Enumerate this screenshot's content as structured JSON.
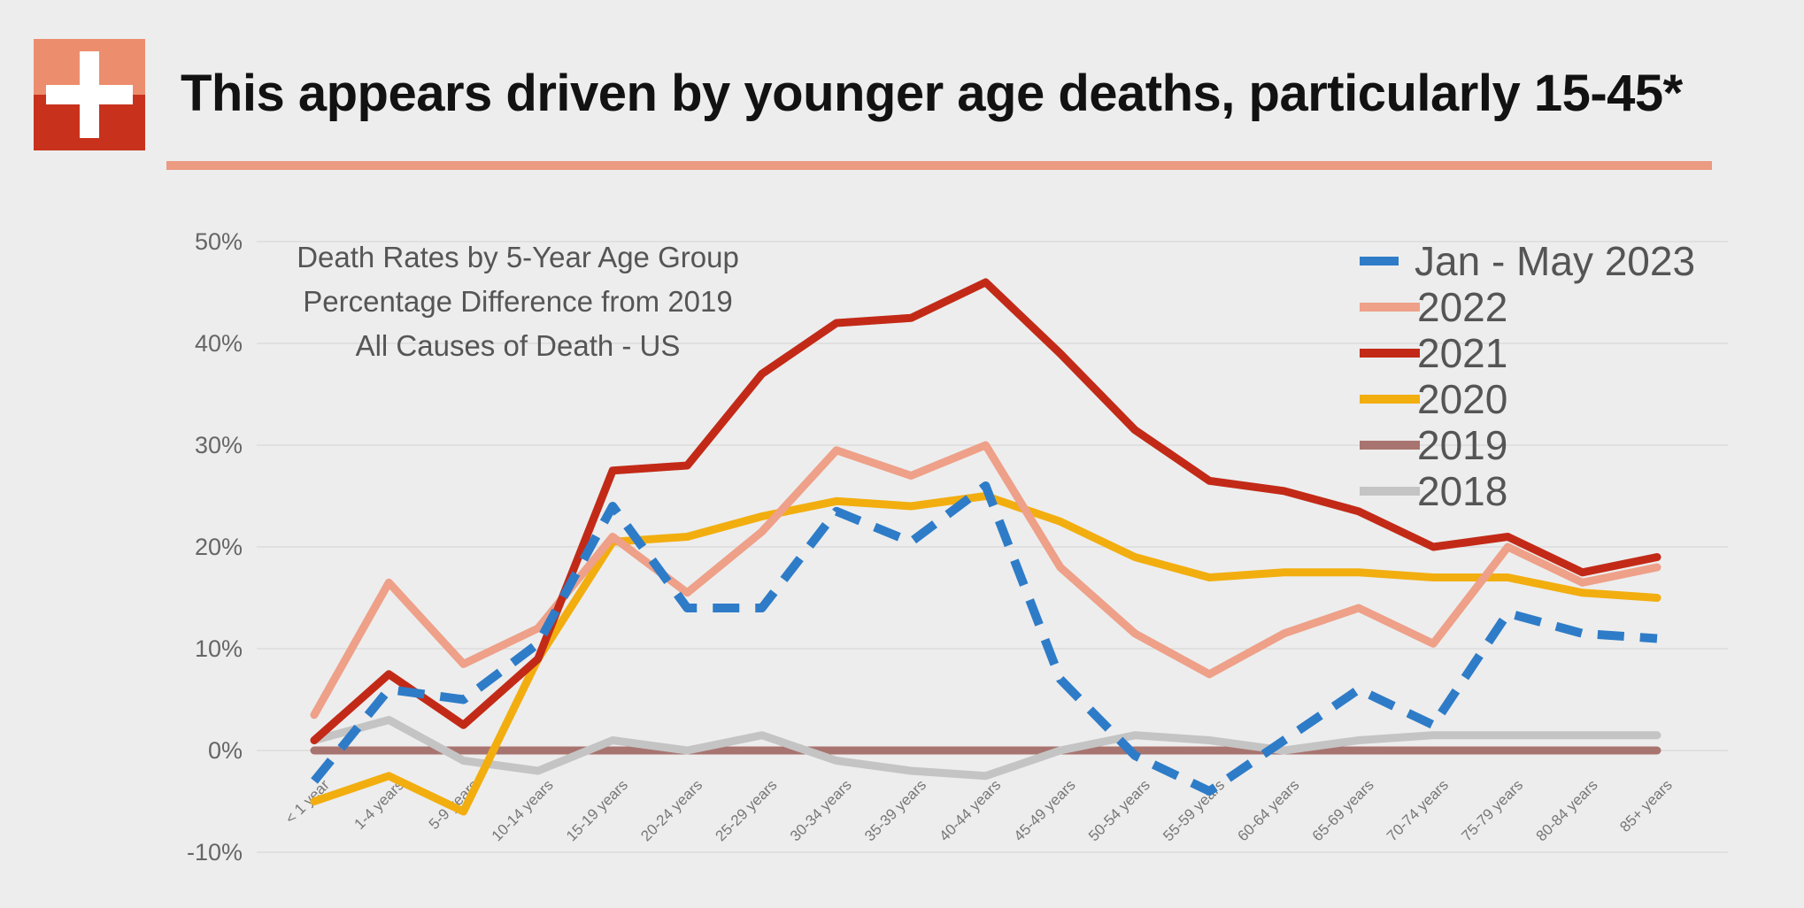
{
  "slide": {
    "headline": "This appears driven by younger age deaths, particularly 15-45*",
    "logo_icon": "plus-cross-icon",
    "accent_color": "#ec9a82"
  },
  "chart_data": {
    "type": "line",
    "title_lines": [
      "Death Rates by 5-Year Age Group",
      "Percentage Difference from 2019",
      "All Causes of Death - US"
    ],
    "xlabel": "",
    "ylabel": "",
    "ylim": [
      -10,
      50
    ],
    "yticks": [
      -10,
      0,
      10,
      20,
      30,
      40,
      50
    ],
    "ytick_labels": [
      "-10%",
      "0%",
      "10%",
      "20%",
      "30%",
      "40%",
      "50%"
    ],
    "grid": true,
    "legend_position": "top-right",
    "categories": [
      "< 1 year",
      "1-4 years",
      "5-9 years",
      "10-14 years",
      "15-19 years",
      "20-24 years",
      "25-29 years",
      "30-34 years",
      "35-39 years",
      "40-44 years",
      "45-49 years",
      "50-54 years",
      "55-59 years",
      "60-64 years",
      "65-69 years",
      "70-74 years",
      "75-79 years",
      "80-84 years",
      "85+ years"
    ],
    "series": [
      {
        "name": "Jan - May 2023",
        "color": "#2e7cc8",
        "dashed": true,
        "values": [
          -3,
          6,
          5,
          10.5,
          24,
          14,
          14,
          23.5,
          20.5,
          26,
          7,
          -0.5,
          -4,
          1,
          6,
          2.5,
          13.5,
          11.5,
          11
        ]
      },
      {
        "name": "2022",
        "color": "#eea088",
        "dashed": false,
        "values": [
          3.5,
          16.5,
          8.5,
          12,
          21,
          15.5,
          21.5,
          29.5,
          27,
          30,
          18,
          11.5,
          7.5,
          11.5,
          14,
          10.5,
          20,
          16.5,
          18
        ]
      },
      {
        "name": "2021",
        "color": "#c22a17",
        "dashed": false,
        "values": [
          1,
          7.5,
          2.5,
          9,
          27.5,
          28,
          37,
          42,
          42.5,
          46,
          39,
          31.5,
          26.5,
          25.5,
          23.5,
          20,
          21,
          17.5,
          19
        ]
      },
      {
        "name": "2020",
        "color": "#f2ae0f",
        "dashed": false,
        "values": [
          -5,
          -2.5,
          -6,
          9,
          20.5,
          21,
          23,
          24.5,
          24,
          25,
          22.5,
          19,
          17,
          17.5,
          17.5,
          17,
          17,
          15.5,
          15
        ]
      },
      {
        "name": "2019",
        "color": "#a87470",
        "dashed": false,
        "values": [
          0,
          0,
          0,
          0,
          0,
          0,
          0,
          0,
          0,
          0,
          0,
          0,
          0,
          0,
          0,
          0,
          0,
          0,
          0
        ]
      },
      {
        "name": "2018",
        "color": "#c4c4c4",
        "dashed": false,
        "values": [
          1,
          3,
          -1,
          -2,
          1,
          0,
          1.5,
          -1,
          -2,
          -2.5,
          0,
          1.5,
          1,
          0,
          1,
          1.5,
          1.5,
          1.5,
          1.5
        ]
      }
    ]
  }
}
